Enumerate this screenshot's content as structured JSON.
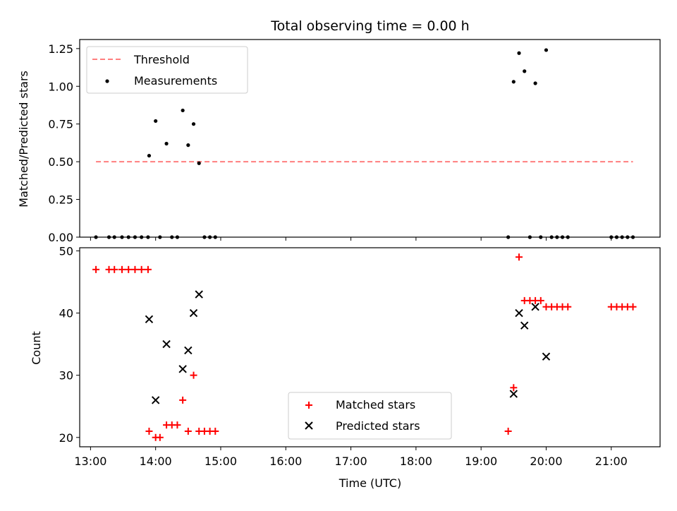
{
  "chart_data": [
    {
      "type": "scatter",
      "title": "Total observing time = 0.00 h",
      "xlabel": "",
      "ylabel": "Matched/Predicted stars",
      "xlim": [
        "12:50",
        "21:45"
      ],
      "ylim": [
        0,
        1.31
      ],
      "yticks": [
        "0.00",
        "0.25",
        "0.50",
        "0.75",
        "1.00",
        "1.25"
      ],
      "legend_position": "upper-left",
      "threshold": {
        "name": "Threshold",
        "value": 0.5,
        "x_range": [
          "13:05",
          "21:20"
        ],
        "color": "#ff7f7f",
        "style": "dashed"
      },
      "series": [
        {
          "name": "Measurements",
          "color": "#000000",
          "points": [
            {
              "x": "13:05",
              "y": 0
            },
            {
              "x": "13:17",
              "y": 0
            },
            {
              "x": "13:22",
              "y": 0
            },
            {
              "x": "13:29",
              "y": 0
            },
            {
              "x": "13:35",
              "y": 0
            },
            {
              "x": "13:41",
              "y": 0
            },
            {
              "x": "13:47",
              "y": 0
            },
            {
              "x": "13:53",
              "y": 0
            },
            {
              "x": "13:54",
              "y": 0.54
            },
            {
              "x": "14:00",
              "y": 0.77
            },
            {
              "x": "14:04",
              "y": 0
            },
            {
              "x": "14:10",
              "y": 0.62
            },
            {
              "x": "14:15",
              "y": 0
            },
            {
              "x": "14:20",
              "y": 0
            },
            {
              "x": "14:25",
              "y": 0.84
            },
            {
              "x": "14:30",
              "y": 0.61
            },
            {
              "x": "14:35",
              "y": 0.75
            },
            {
              "x": "14:40",
              "y": 0.49
            },
            {
              "x": "14:45",
              "y": 0
            },
            {
              "x": "14:50",
              "y": 0
            },
            {
              "x": "14:55",
              "y": 0
            },
            {
              "x": "19:25",
              "y": 0
            },
            {
              "x": "19:30",
              "y": 1.03
            },
            {
              "x": "19:35",
              "y": 1.22
            },
            {
              "x": "19:40",
              "y": 1.1
            },
            {
              "x": "19:45",
              "y": 0
            },
            {
              "x": "19:50",
              "y": 1.02
            },
            {
              "x": "19:55",
              "y": 0
            },
            {
              "x": "20:00",
              "y": 1.24
            },
            {
              "x": "20:05",
              "y": 0
            },
            {
              "x": "20:10",
              "y": 0
            },
            {
              "x": "20:15",
              "y": 0
            },
            {
              "x": "20:20",
              "y": 0
            },
            {
              "x": "21:00",
              "y": 0
            },
            {
              "x": "21:05",
              "y": 0
            },
            {
              "x": "21:10",
              "y": 0
            },
            {
              "x": "21:15",
              "y": 0
            },
            {
              "x": "21:20",
              "y": 0
            }
          ]
        }
      ]
    },
    {
      "type": "scatter",
      "title": "",
      "xlabel": "Time (UTC)",
      "ylabel": "Count",
      "xlim": [
        "12:50",
        "21:45"
      ],
      "ylim": [
        18.5,
        50.5
      ],
      "xticks": [
        "13:00",
        "14:00",
        "15:00",
        "16:00",
        "17:00",
        "18:00",
        "19:00",
        "20:00",
        "21:00"
      ],
      "yticks": [
        "20",
        "30",
        "40",
        "50"
      ],
      "legend_position": "lower-center",
      "series": [
        {
          "name": "Matched stars",
          "marker": "plus",
          "color": "#ff0000",
          "points": [
            {
              "x": "13:05",
              "y": 47
            },
            {
              "x": "13:17",
              "y": 47
            },
            {
              "x": "13:22",
              "y": 47
            },
            {
              "x": "13:29",
              "y": 47
            },
            {
              "x": "13:35",
              "y": 47
            },
            {
              "x": "13:41",
              "y": 47
            },
            {
              "x": "13:47",
              "y": 47
            },
            {
              "x": "13:53",
              "y": 47
            },
            {
              "x": "13:54",
              "y": 21
            },
            {
              "x": "14:00",
              "y": 20
            },
            {
              "x": "14:04",
              "y": 20
            },
            {
              "x": "14:10",
              "y": 22
            },
            {
              "x": "14:15",
              "y": 22
            },
            {
              "x": "14:20",
              "y": 22
            },
            {
              "x": "14:25",
              "y": 26
            },
            {
              "x": "14:30",
              "y": 21
            },
            {
              "x": "14:35",
              "y": 30
            },
            {
              "x": "14:40",
              "y": 21
            },
            {
              "x": "14:45",
              "y": 21
            },
            {
              "x": "14:50",
              "y": 21
            },
            {
              "x": "14:55",
              "y": 21
            },
            {
              "x": "19:25",
              "y": 21
            },
            {
              "x": "19:30",
              "y": 28
            },
            {
              "x": "19:35",
              "y": 49
            },
            {
              "x": "19:40",
              "y": 42
            },
            {
              "x": "19:45",
              "y": 42
            },
            {
              "x": "19:50",
              "y": 42
            },
            {
              "x": "19:55",
              "y": 42
            },
            {
              "x": "20:00",
              "y": 41
            },
            {
              "x": "20:05",
              "y": 41
            },
            {
              "x": "20:10",
              "y": 41
            },
            {
              "x": "20:15",
              "y": 41
            },
            {
              "x": "20:20",
              "y": 41
            },
            {
              "x": "21:00",
              "y": 41
            },
            {
              "x": "21:05",
              "y": 41
            },
            {
              "x": "21:10",
              "y": 41
            },
            {
              "x": "21:15",
              "y": 41
            },
            {
              "x": "21:20",
              "y": 41
            }
          ]
        },
        {
          "name": "Predicted stars",
          "marker": "x",
          "color": "#000000",
          "points": [
            {
              "x": "13:54",
              "y": 39
            },
            {
              "x": "14:00",
              "y": 26
            },
            {
              "x": "14:10",
              "y": 35
            },
            {
              "x": "14:25",
              "y": 31
            },
            {
              "x": "14:30",
              "y": 34
            },
            {
              "x": "14:35",
              "y": 40
            },
            {
              "x": "14:40",
              "y": 43
            },
            {
              "x": "19:30",
              "y": 27
            },
            {
              "x": "19:35",
              "y": 40
            },
            {
              "x": "19:40",
              "y": 38
            },
            {
              "x": "19:50",
              "y": 41
            },
            {
              "x": "20:00",
              "y": 33
            }
          ]
        }
      ]
    }
  ]
}
